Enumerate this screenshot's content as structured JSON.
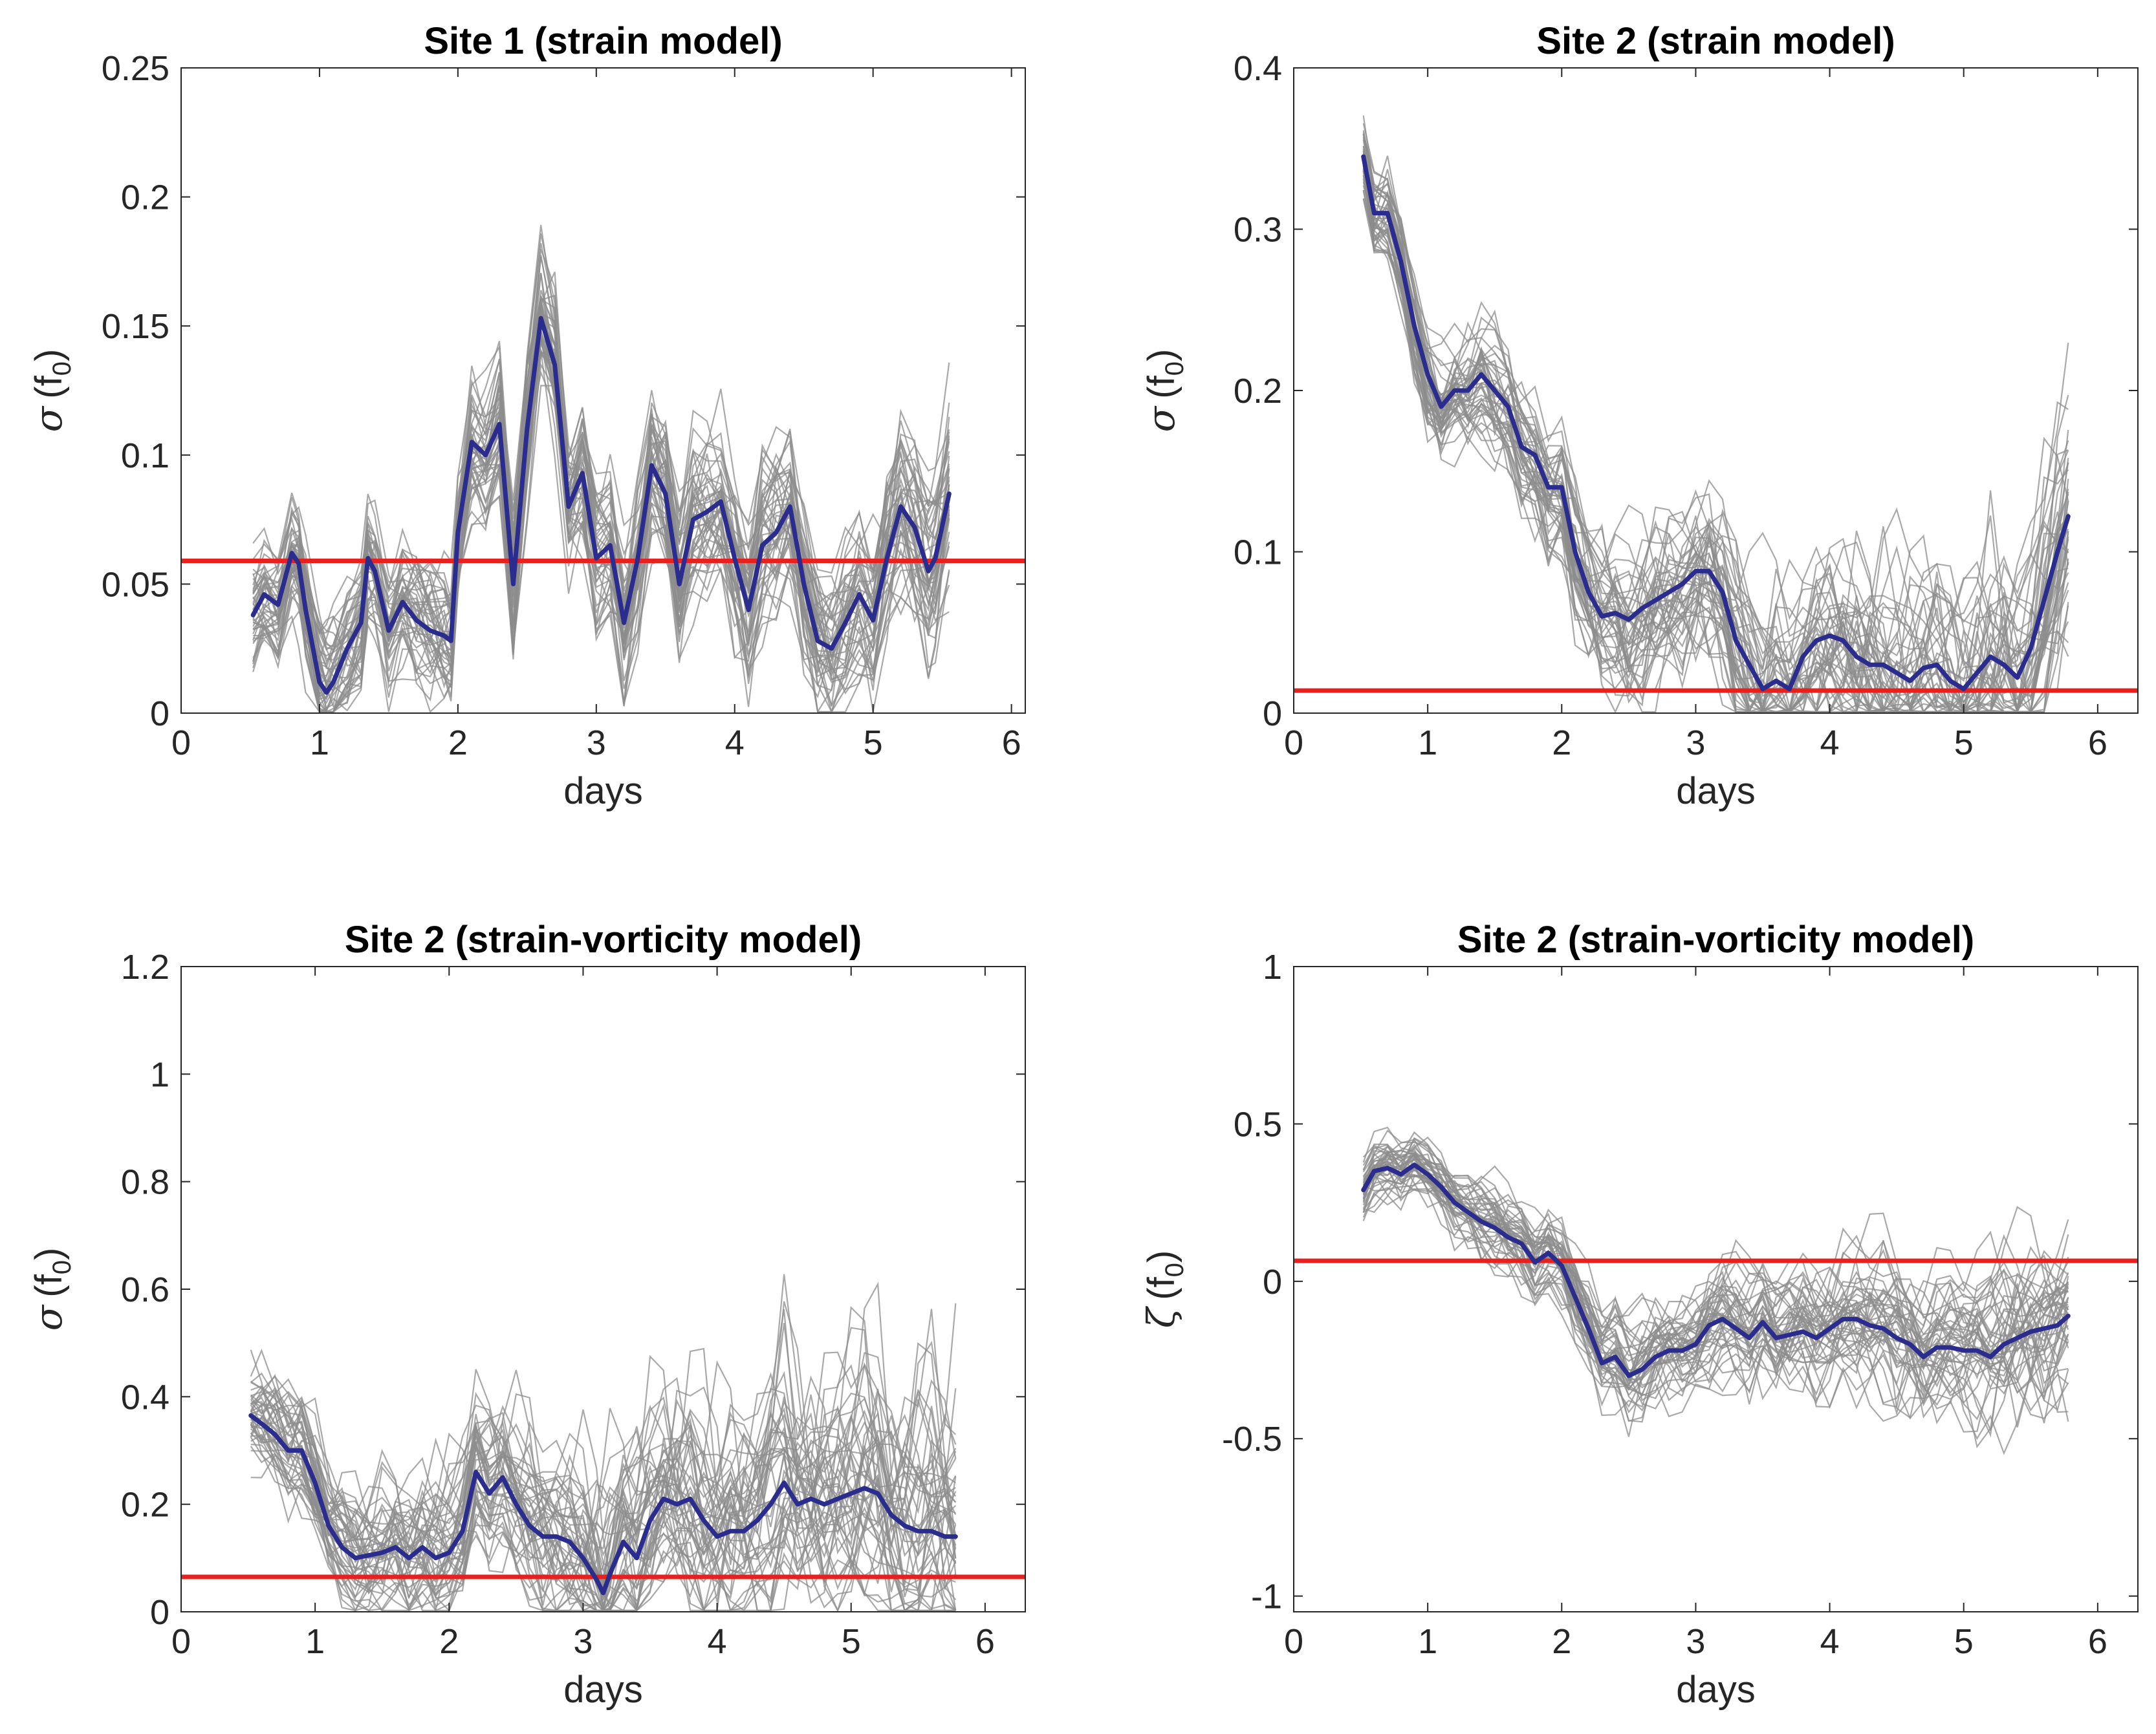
{
  "colors": {
    "ensemble": "#8c8c8c",
    "mean": "#2b2d8e",
    "threshold": "#e8201e",
    "axis": "#262626"
  },
  "chart_data": [
    {
      "type": "line",
      "title": "Site 1 (strain model)",
      "xlabel": "days",
      "ylabel": "σ (f0)",
      "ylabel_symbol": "σ",
      "ylabel_unit": "(f",
      "ylabel_sub": "0",
      "ylabel_close": ")",
      "xlim": [
        0,
        6.1
      ],
      "ylim": [
        0,
        0.25
      ],
      "xticks": [
        0,
        1,
        2,
        3,
        4,
        5,
        6
      ],
      "yticks": [
        0,
        0.05,
        0.1,
        0.15,
        0.2,
        0.25
      ],
      "xtick_labels": [
        "0",
        "1",
        "2",
        "3",
        "4",
        "5",
        "6"
      ],
      "ytick_labels": [
        "0",
        "0.05",
        "0.1",
        "0.15",
        "0.2",
        "0.25"
      ],
      "threshold": 0.059,
      "ensemble_spread": 0.025,
      "ensemble_count": 45,
      "mean": {
        "x": [
          0.52,
          0.6,
          0.7,
          0.8,
          0.85,
          0.9,
          1.0,
          1.05,
          1.1,
          1.2,
          1.3,
          1.35,
          1.4,
          1.5,
          1.6,
          1.7,
          1.8,
          1.9,
          1.95,
          2.0,
          2.1,
          2.2,
          2.3,
          2.4,
          2.5,
          2.6,
          2.7,
          2.8,
          2.9,
          3.0,
          3.1,
          3.2,
          3.3,
          3.4,
          3.5,
          3.6,
          3.7,
          3.8,
          3.9,
          4.0,
          4.1,
          4.2,
          4.3,
          4.4,
          4.5,
          4.6,
          4.7,
          4.8,
          4.9,
          5.0,
          5.1,
          5.2,
          5.3,
          5.4,
          5.45,
          5.55
        ],
        "y": [
          0.038,
          0.046,
          0.042,
          0.062,
          0.058,
          0.04,
          0.012,
          0.008,
          0.012,
          0.025,
          0.035,
          0.06,
          0.055,
          0.032,
          0.043,
          0.036,
          0.032,
          0.03,
          0.028,
          0.07,
          0.105,
          0.1,
          0.112,
          0.05,
          0.11,
          0.153,
          0.135,
          0.08,
          0.093,
          0.06,
          0.065,
          0.035,
          0.06,
          0.096,
          0.085,
          0.05,
          0.075,
          0.078,
          0.082,
          0.06,
          0.04,
          0.065,
          0.07,
          0.08,
          0.05,
          0.028,
          0.025,
          0.035,
          0.046,
          0.036,
          0.06,
          0.08,
          0.072,
          0.055,
          0.06,
          0.085
        ]
      }
    },
    {
      "type": "line",
      "title": "Site 2 (strain model)",
      "xlabel": "days",
      "ylabel": "σ (f0)",
      "ylabel_symbol": "σ",
      "ylabel_unit": "(f",
      "ylabel_sub": "0",
      "ylabel_close": ")",
      "xlim": [
        0,
        6.3
      ],
      "ylim": [
        0,
        0.4
      ],
      "xticks": [
        0,
        1,
        2,
        3,
        4,
        5,
        6
      ],
      "yticks": [
        0,
        0.1,
        0.2,
        0.3,
        0.4
      ],
      "xtick_labels": [
        "0",
        "1",
        "2",
        "3",
        "4",
        "5",
        "6"
      ],
      "ytick_labels": [
        "0",
        "0.1",
        "0.2",
        "0.3",
        "0.4"
      ],
      "threshold": 0.014,
      "ensemble_spread": 0.03,
      "ensemble_count": 45,
      "mean": {
        "x": [
          0.52,
          0.6,
          0.7,
          0.8,
          0.9,
          1.0,
          1.1,
          1.2,
          1.3,
          1.4,
          1.5,
          1.6,
          1.7,
          1.8,
          1.9,
          2.0,
          2.1,
          2.2,
          2.3,
          2.4,
          2.5,
          2.6,
          2.7,
          2.8,
          2.9,
          3.0,
          3.1,
          3.2,
          3.3,
          3.4,
          3.5,
          3.6,
          3.7,
          3.8,
          3.9,
          4.0,
          4.1,
          4.2,
          4.3,
          4.4,
          4.5,
          4.6,
          4.7,
          4.8,
          4.9,
          5.0,
          5.1,
          5.2,
          5.3,
          5.4,
          5.5,
          5.6,
          5.7,
          5.78
        ],
        "y": [
          0.345,
          0.31,
          0.31,
          0.28,
          0.24,
          0.21,
          0.19,
          0.2,
          0.2,
          0.21,
          0.2,
          0.19,
          0.165,
          0.16,
          0.14,
          0.14,
          0.1,
          0.075,
          0.06,
          0.062,
          0.058,
          0.065,
          0.07,
          0.075,
          0.08,
          0.088,
          0.088,
          0.075,
          0.045,
          0.03,
          0.015,
          0.02,
          0.015,
          0.035,
          0.045,
          0.048,
          0.045,
          0.035,
          0.03,
          0.03,
          0.025,
          0.02,
          0.028,
          0.03,
          0.02,
          0.015,
          0.025,
          0.035,
          0.03,
          0.022,
          0.04,
          0.07,
          0.1,
          0.122
        ]
      }
    },
    {
      "type": "line",
      "title": "Site 2 (strain-vorticity model)",
      "xlabel": "days",
      "ylabel": "σ (f0)",
      "ylabel_symbol": "σ",
      "ylabel_unit": "(f",
      "ylabel_sub": "0",
      "ylabel_close": ")",
      "xlim": [
        0,
        6.3
      ],
      "ylim": [
        0,
        1.2
      ],
      "xticks": [
        0,
        1,
        2,
        3,
        4,
        5,
        6
      ],
      "yticks": [
        0,
        0.2,
        0.4,
        0.6,
        0.8,
        1.0,
        1.2
      ],
      "xtick_labels": [
        "0",
        "1",
        "2",
        "3",
        "4",
        "5",
        "6"
      ],
      "ytick_labels": [
        "0",
        "0.2",
        "0.4",
        "0.6",
        "0.8",
        "1",
        "1.2"
      ],
      "threshold": 0.065,
      "ensemble_spread": 0.1,
      "ensemble_count": 45,
      "mean": {
        "x": [
          0.52,
          0.6,
          0.7,
          0.8,
          0.9,
          1.0,
          1.1,
          1.2,
          1.3,
          1.4,
          1.5,
          1.6,
          1.7,
          1.8,
          1.9,
          2.0,
          2.1,
          2.2,
          2.3,
          2.4,
          2.5,
          2.6,
          2.7,
          2.8,
          2.9,
          3.0,
          3.1,
          3.15,
          3.2,
          3.3,
          3.4,
          3.5,
          3.6,
          3.7,
          3.8,
          3.9,
          4.0,
          4.1,
          4.2,
          4.3,
          4.4,
          4.5,
          4.6,
          4.7,
          4.8,
          4.9,
          5.0,
          5.1,
          5.2,
          5.3,
          5.4,
          5.5,
          5.6,
          5.7,
          5.78
        ],
        "y": [
          0.365,
          0.35,
          0.33,
          0.3,
          0.3,
          0.24,
          0.16,
          0.12,
          0.1,
          0.105,
          0.11,
          0.12,
          0.1,
          0.12,
          0.1,
          0.11,
          0.15,
          0.26,
          0.22,
          0.25,
          0.2,
          0.16,
          0.14,
          0.14,
          0.13,
          0.1,
          0.06,
          0.035,
          0.07,
          0.13,
          0.1,
          0.17,
          0.21,
          0.2,
          0.21,
          0.17,
          0.14,
          0.15,
          0.15,
          0.17,
          0.2,
          0.24,
          0.2,
          0.21,
          0.2,
          0.21,
          0.22,
          0.23,
          0.22,
          0.18,
          0.16,
          0.15,
          0.15,
          0.14,
          0.14
        ]
      }
    },
    {
      "type": "line",
      "title": "Site 2 (strain-vorticity model)",
      "xlabel": "days",
      "ylabel": "ζ (f0)",
      "ylabel_symbol": "ζ",
      "ylabel_unit": "(f",
      "ylabel_sub": "0",
      "ylabel_close": ")",
      "xlim": [
        0,
        6.3
      ],
      "ylim": [
        -1.05,
        1
      ],
      "xticks": [
        0,
        1,
        2,
        3,
        4,
        5,
        6
      ],
      "yticks": [
        -1,
        -0.5,
        0,
        0.5,
        1
      ],
      "xtick_labels": [
        "0",
        "1",
        "2",
        "3",
        "4",
        "5",
        "6"
      ],
      "ytick_labels": [
        "-1",
        "-0.5",
        "0",
        "0.5",
        "1"
      ],
      "threshold": 0.065,
      "ensemble_spread": 0.1,
      "ensemble_count": 45,
      "mean": {
        "x": [
          0.52,
          0.6,
          0.7,
          0.8,
          0.9,
          1.0,
          1.1,
          1.2,
          1.3,
          1.4,
          1.5,
          1.6,
          1.7,
          1.8,
          1.9,
          2.0,
          2.1,
          2.2,
          2.3,
          2.4,
          2.5,
          2.6,
          2.7,
          2.8,
          2.9,
          3.0,
          3.1,
          3.2,
          3.3,
          3.4,
          3.5,
          3.6,
          3.7,
          3.8,
          3.9,
          4.0,
          4.1,
          4.2,
          4.3,
          4.4,
          4.5,
          4.6,
          4.7,
          4.8,
          4.9,
          5.0,
          5.1,
          5.2,
          5.3,
          5.4,
          5.5,
          5.6,
          5.7,
          5.78
        ],
        "y": [
          0.29,
          0.35,
          0.36,
          0.34,
          0.37,
          0.34,
          0.3,
          0.25,
          0.22,
          0.19,
          0.17,
          0.14,
          0.12,
          0.06,
          0.09,
          0.05,
          -0.05,
          -0.15,
          -0.26,
          -0.24,
          -0.3,
          -0.28,
          -0.24,
          -0.22,
          -0.22,
          -0.2,
          -0.14,
          -0.12,
          -0.15,
          -0.18,
          -0.13,
          -0.18,
          -0.17,
          -0.16,
          -0.18,
          -0.15,
          -0.12,
          -0.12,
          -0.14,
          -0.15,
          -0.18,
          -0.2,
          -0.24,
          -0.21,
          -0.21,
          -0.22,
          -0.22,
          -0.24,
          -0.2,
          -0.18,
          -0.16,
          -0.15,
          -0.14,
          -0.11
        ]
      }
    }
  ]
}
